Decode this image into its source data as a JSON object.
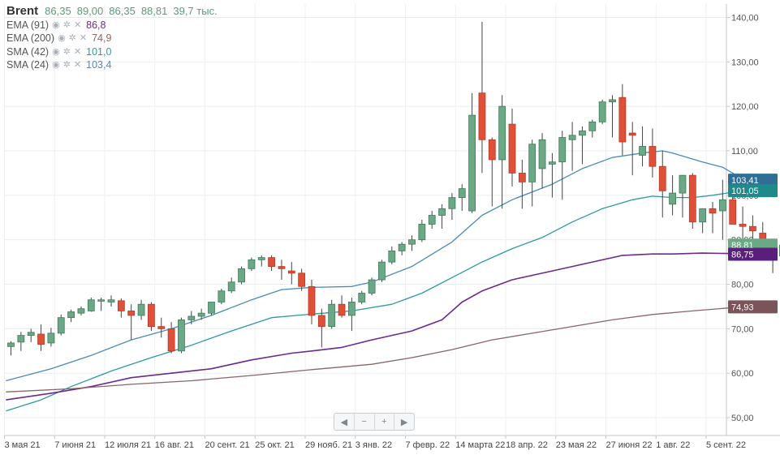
{
  "instrument": "Brent",
  "ohlc": {
    "open": "86,35",
    "high": "89,00",
    "low": "86,35",
    "close": "88,81",
    "volume": "39,7 тыс."
  },
  "indicators": [
    {
      "label": "EMA (91)",
      "value": "86,8",
      "color": "#6b2a8c"
    },
    {
      "label": "EMA (200)",
      "value": "74,9",
      "color": "#8a6468"
    },
    {
      "label": "SMA (42)",
      "value": "101,0",
      "color": "#2f9a9a"
    },
    {
      "label": "SMA (24)",
      "value": "103,4",
      "color": "#4a8ab8"
    }
  ],
  "price_badges": [
    {
      "text": "103,41",
      "value": 103.41,
      "color": "#2f6f96"
    },
    {
      "text": "101,05",
      "value": 101.05,
      "color": "#1f8a8a"
    },
    {
      "text": "88,81",
      "value": 88.81,
      "color": "#6aa886"
    },
    {
      "text": "86,75",
      "value": 86.75,
      "color": "#5a1f7a"
    },
    {
      "text": "74,93",
      "value": 74.93,
      "color": "#7a5458"
    }
  ],
  "zoom_controls": [
    "◀",
    "−",
    "+",
    "▶"
  ],
  "chart_data": {
    "type": "candlestick",
    "ylim": [
      46,
      143
    ],
    "yticks": [
      50,
      60,
      70,
      80,
      90,
      100,
      110,
      120,
      130,
      140
    ],
    "ytick_labels": [
      "50,00",
      "60,00",
      "70,00",
      "80,00",
      "90,00",
      "100,00",
      "110,00",
      "120,00",
      "130,00",
      "140,00"
    ],
    "xticks": [
      {
        "i": 0,
        "label": "3 мая 21"
      },
      {
        "i": 5,
        "label": "7 июня 21"
      },
      {
        "i": 10,
        "label": "12 июля 21"
      },
      {
        "i": 15,
        "label": "16 авг. 21"
      },
      {
        "i": 20,
        "label": "20 сент. 21"
      },
      {
        "i": 25,
        "label": "25 окт. 21"
      },
      {
        "i": 30,
        "label": "29 нояб. 21"
      },
      {
        "i": 35,
        "label": "3 янв. 22"
      },
      {
        "i": 40,
        "label": "7 февр. 22"
      },
      {
        "i": 45,
        "label": "14 марта 22"
      },
      {
        "i": 50,
        "label": "18 апр. 22"
      },
      {
        "i": 55,
        "label": "23 мая 22"
      },
      {
        "i": 60,
        "label": "27 июня 22"
      },
      {
        "i": 65,
        "label": "1 авг. 22"
      },
      {
        "i": 70,
        "label": "5 сент. 22"
      }
    ],
    "candles": [
      [
        66.0,
        67.2,
        64.0,
        66.8
      ],
      [
        67.0,
        69.3,
        65.0,
        68.5
      ],
      [
        68.5,
        70.0,
        67.0,
        69.2
      ],
      [
        68.8,
        71.0,
        65.0,
        66.5
      ],
      [
        66.8,
        70.2,
        66.0,
        69.0
      ],
      [
        69.0,
        73.2,
        68.5,
        72.5
      ],
      [
        72.5,
        74.3,
        71.5,
        73.8
      ],
      [
        73.5,
        75.0,
        73.0,
        74.5
      ],
      [
        74.0,
        77.0,
        73.8,
        76.5
      ],
      [
        76.2,
        77.0,
        74.0,
        76.5
      ],
      [
        76.0,
        77.5,
        75.0,
        76.5
      ],
      [
        76.3,
        76.8,
        72.5,
        74.0
      ],
      [
        74.0,
        75.5,
        67.5,
        73.0
      ],
      [
        73.0,
        76.5,
        72.0,
        75.5
      ],
      [
        75.5,
        76.0,
        69.5,
        70.5
      ],
      [
        70.5,
        72.5,
        68.0,
        70.0
      ],
      [
        70.0,
        71.5,
        64.5,
        65.0
      ],
      [
        65.0,
        72.5,
        64.5,
        72.0
      ],
      [
        72.0,
        74.0,
        71.0,
        72.8
      ],
      [
        72.8,
        74.5,
        72.0,
        73.5
      ],
      [
        73.5,
        76.0,
        73.0,
        76.0
      ],
      [
        76.0,
        79.0,
        75.5,
        78.5
      ],
      [
        78.5,
        81.5,
        78.0,
        80.5
      ],
      [
        80.5,
        84.0,
        80.0,
        83.5
      ],
      [
        83.5,
        86.0,
        83.0,
        85.5
      ],
      [
        85.5,
        86.5,
        84.0,
        86.0
      ],
      [
        86.0,
        86.5,
        83.0,
        84.0
      ],
      [
        84.0,
        85.5,
        81.0,
        83.5
      ],
      [
        83.0,
        85.0,
        80.0,
        82.5
      ],
      [
        82.5,
        83.5,
        78.5,
        79.5
      ],
      [
        79.5,
        81.0,
        71.0,
        73.0
      ],
      [
        73.0,
        74.5,
        65.8,
        70.5
      ],
      [
        70.5,
        76.5,
        70.0,
        75.5
      ],
      [
        75.5,
        77.5,
        72.5,
        73.0
      ],
      [
        73.0,
        77.0,
        69.5,
        76.0
      ],
      [
        76.0,
        78.5,
        75.5,
        78.0
      ],
      [
        78.0,
        81.5,
        77.5,
        81.0
      ],
      [
        81.0,
        85.5,
        80.5,
        85.0
      ],
      [
        85.0,
        88.5,
        84.5,
        87.5
      ],
      [
        87.5,
        89.5,
        86.5,
        89.0
      ],
      [
        89.0,
        91.0,
        87.5,
        90.0
      ],
      [
        90.0,
        94.5,
        89.5,
        93.5
      ],
      [
        93.5,
        96.5,
        92.5,
        95.5
      ],
      [
        95.5,
        98.0,
        92.5,
        97.0
      ],
      [
        97.0,
        100.5,
        94.5,
        99.5
      ],
      [
        99.5,
        102.5,
        96.5,
        101.5
      ],
      [
        96.5,
        123.0,
        96.0,
        118.0
      ],
      [
        123.0,
        139.0,
        105.0,
        112.5
      ],
      [
        112.5,
        113.0,
        97.5,
        108.0
      ],
      [
        108.0,
        122.5,
        97.0,
        120.0
      ],
      [
        116.0,
        119.5,
        102.0,
        105.0
      ],
      [
        105.0,
        108.0,
        97.0,
        103.0
      ],
      [
        103.0,
        112.5,
        97.5,
        111.5
      ],
      [
        106.0,
        114.0,
        101.5,
        112.5
      ],
      [
        107.0,
        109.5,
        99.5,
        107.5
      ],
      [
        107.5,
        114.5,
        99.0,
        113.0
      ],
      [
        112.5,
        116.5,
        105.5,
        113.5
      ],
      [
        113.5,
        115.5,
        107.0,
        114.5
      ],
      [
        114.5,
        117.0,
        113.0,
        116.5
      ],
      [
        116.5,
        121.5,
        116.0,
        121.0
      ],
      [
        121.0,
        122.5,
        113.0,
        121.5
      ],
      [
        122.0,
        125.0,
        109.0,
        112.0
      ],
      [
        114.0,
        116.5,
        104.5,
        113.5
      ],
      [
        109.0,
        115.5,
        106.5,
        111.0
      ],
      [
        111.0,
        115.0,
        104.0,
        106.5
      ],
      [
        106.5,
        110.0,
        95.0,
        101.0
      ],
      [
        98.0,
        104.5,
        95.5,
        100.5
      ],
      [
        100.5,
        104.5,
        95.0,
        104.5
      ],
      [
        104.5,
        105.0,
        92.5,
        94.0
      ],
      [
        94.0,
        97.0,
        91.5,
        97.0
      ],
      [
        97.0,
        98.5,
        91.5,
        96.0
      ],
      [
        96.5,
        103.5,
        90.0,
        99.0
      ],
      [
        99.0,
        103.0,
        93.5,
        93.5
      ],
      [
        93.5,
        97.5,
        86.5,
        93.0
      ],
      [
        93.0,
        95.5,
        88.0,
        92.0
      ],
      [
        91.5,
        94.0,
        86.0,
        87.0
      ],
      [
        87.5,
        88.5,
        82.5,
        86.5
      ],
      [
        86.35,
        89.0,
        86.35,
        88.81
      ]
    ],
    "series": [
      {
        "name": "SMA (24)",
        "color": "#4a8ab8",
        "width": 1.3,
        "points": [
          [
            -0.5,
            58.3
          ],
          [
            4,
            61.0
          ],
          [
            8,
            64.0
          ],
          [
            12,
            67.5
          ],
          [
            16,
            70.0
          ],
          [
            20,
            73.0
          ],
          [
            24,
            76.5
          ],
          [
            27,
            78.8
          ],
          [
            30,
            79.3
          ],
          [
            34,
            79.5
          ],
          [
            36,
            80.5
          ],
          [
            40,
            84.0
          ],
          [
            44,
            89.5
          ],
          [
            47,
            95.5
          ],
          [
            50,
            99.0
          ],
          [
            54,
            102.5
          ],
          [
            57,
            106.0
          ],
          [
            60,
            108.5
          ],
          [
            63,
            109.5
          ],
          [
            65,
            110.0
          ],
          [
            66,
            109.5
          ],
          [
            69,
            107.5
          ],
          [
            71,
            106.3
          ],
          [
            72,
            105.0
          ],
          [
            73,
            103.5
          ]
        ]
      },
      {
        "name": "SMA (42)",
        "color": "#2f9a9a",
        "width": 1.3,
        "points": [
          [
            -0.5,
            51.5
          ],
          [
            3,
            54.0
          ],
          [
            6,
            57.0
          ],
          [
            10,
            60.5
          ],
          [
            14,
            63.5
          ],
          [
            18,
            66.3
          ],
          [
            22,
            69.5
          ],
          [
            26,
            72.5
          ],
          [
            30,
            73.3
          ],
          [
            34,
            74.0
          ],
          [
            38,
            75.5
          ],
          [
            41,
            78.0
          ],
          [
            44,
            81.5
          ],
          [
            47,
            85.0
          ],
          [
            50,
            88.0
          ],
          [
            53,
            90.5
          ],
          [
            56,
            94.0
          ],
          [
            59,
            97.0
          ],
          [
            62,
            99.0
          ],
          [
            64,
            99.8
          ],
          [
            66,
            99.5
          ],
          [
            68,
            99.5
          ],
          [
            70,
            100.0
          ],
          [
            73,
            101.05
          ]
        ]
      },
      {
        "name": "EMA (91)",
        "color": "#6b2a8c",
        "width": 1.6,
        "points": [
          [
            -0.5,
            54.0
          ],
          [
            4,
            55.5
          ],
          [
            8,
            57.0
          ],
          [
            12,
            59.0
          ],
          [
            16,
            60.0
          ],
          [
            20,
            61.0
          ],
          [
            24,
            63.0
          ],
          [
            28,
            64.5
          ],
          [
            30,
            65.0
          ],
          [
            33,
            65.8
          ],
          [
            36,
            67.5
          ],
          [
            40,
            69.5
          ],
          [
            43,
            72.0
          ],
          [
            45,
            76.0
          ],
          [
            47,
            78.5
          ],
          [
            50,
            81.0
          ],
          [
            54,
            83.0
          ],
          [
            58,
            85.0
          ],
          [
            61,
            86.5
          ],
          [
            64,
            86.8
          ],
          [
            66,
            86.8
          ],
          [
            69,
            87.0
          ],
          [
            72,
            86.9
          ],
          [
            73,
            86.75
          ]
        ]
      },
      {
        "name": "EMA (200)",
        "color": "#8a6468",
        "width": 1.3,
        "points": [
          [
            -0.5,
            55.8
          ],
          [
            6,
            56.5
          ],
          [
            12,
            57.5
          ],
          [
            18,
            58.3
          ],
          [
            24,
            59.5
          ],
          [
            30,
            60.8
          ],
          [
            36,
            62.0
          ],
          [
            40,
            63.5
          ],
          [
            44,
            65.3
          ],
          [
            48,
            67.5
          ],
          [
            52,
            69.0
          ],
          [
            56,
            70.5
          ],
          [
            60,
            72.0
          ],
          [
            64,
            73.2
          ],
          [
            68,
            74.0
          ],
          [
            73,
            74.93
          ]
        ]
      }
    ]
  }
}
